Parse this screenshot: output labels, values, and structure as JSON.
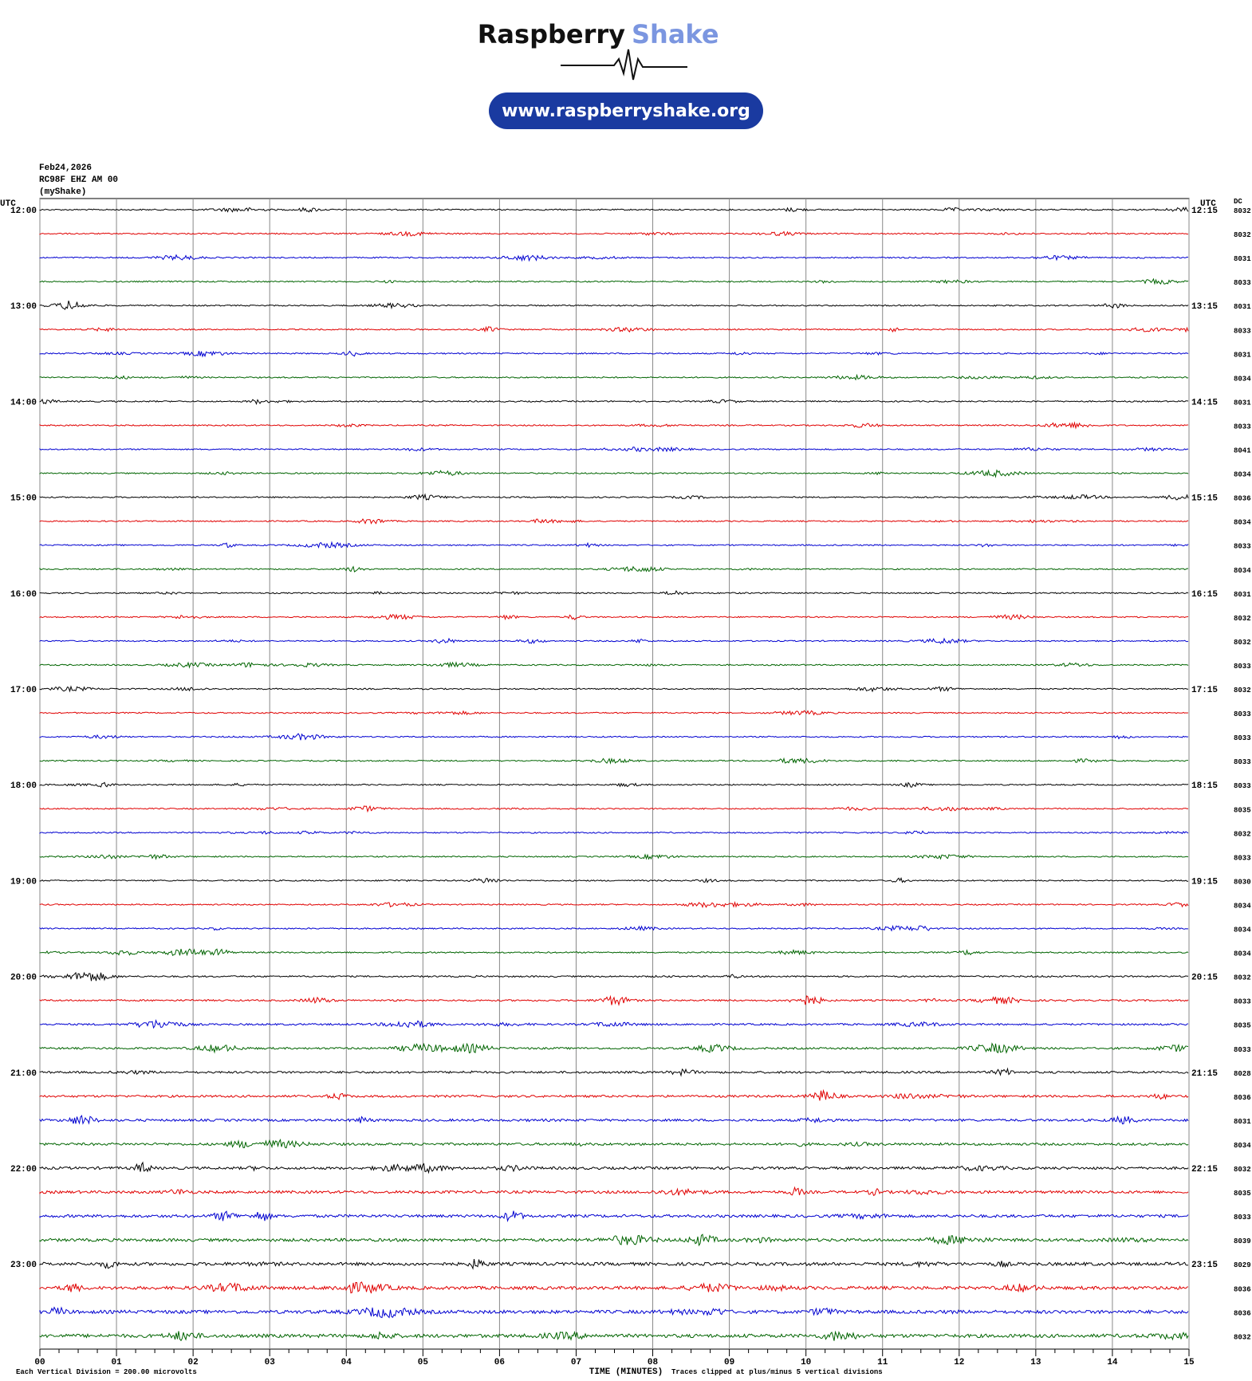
{
  "header": {
    "brand_dark": "Raspberry",
    "brand_light": "Shake",
    "url": "www.raspberryshake.org"
  },
  "info": {
    "date": "Feb24,2026",
    "station": "RC98F EHZ AM 00",
    "source": "(myShake)"
  },
  "left_unit": "UTC",
  "right_unit": "UTC",
  "dc_header": "DC",
  "hours": [
    {
      "left": "12:00",
      "right": "12:15"
    },
    {
      "left": "13:00",
      "right": "13:15"
    },
    {
      "left": "14:00",
      "right": "14:15"
    },
    {
      "left": "15:00",
      "right": "15:15"
    },
    {
      "left": "16:00",
      "right": "16:15"
    },
    {
      "left": "17:00",
      "right": "17:15"
    },
    {
      "left": "18:00",
      "right": "18:15"
    },
    {
      "left": "19:00",
      "right": "19:15"
    },
    {
      "left": "20:00",
      "right": "20:15"
    },
    {
      "left": "21:00",
      "right": "21:15"
    },
    {
      "left": "22:00",
      "right": "22:15"
    },
    {
      "left": "23:00",
      "right": "23:15"
    }
  ],
  "dc": [
    "8032",
    "8032",
    "8031",
    "8033",
    "8031",
    "8033",
    "8031",
    "8034",
    "8031",
    "8033",
    "8041",
    "8034",
    "8036",
    "8034",
    "8033",
    "8034",
    "8031",
    "8032",
    "8032",
    "8033",
    "8032",
    "8033",
    "8033",
    "8033",
    "8033",
    "8035",
    "8032",
    "8033",
    "8030",
    "8034",
    "8034",
    "8034",
    "8032",
    "8033",
    "8035",
    "8033",
    "8028",
    "8036",
    "8031",
    "8034",
    "8032",
    "8035",
    "8033",
    "8039",
    "8029",
    "8036",
    "8036",
    "8032"
  ],
  "x_ticks": [
    "00",
    "01",
    "02",
    "03",
    "04",
    "05",
    "06",
    "07",
    "08",
    "09",
    "10",
    "11",
    "12",
    "13",
    "14",
    "15"
  ],
  "x_label": "TIME (MINUTES)",
  "footer_left": "Each Vertical Division =  200.00 microvolts",
  "footer_right": "Traces clipped at plus/minus 5 vertical divisions"
}
